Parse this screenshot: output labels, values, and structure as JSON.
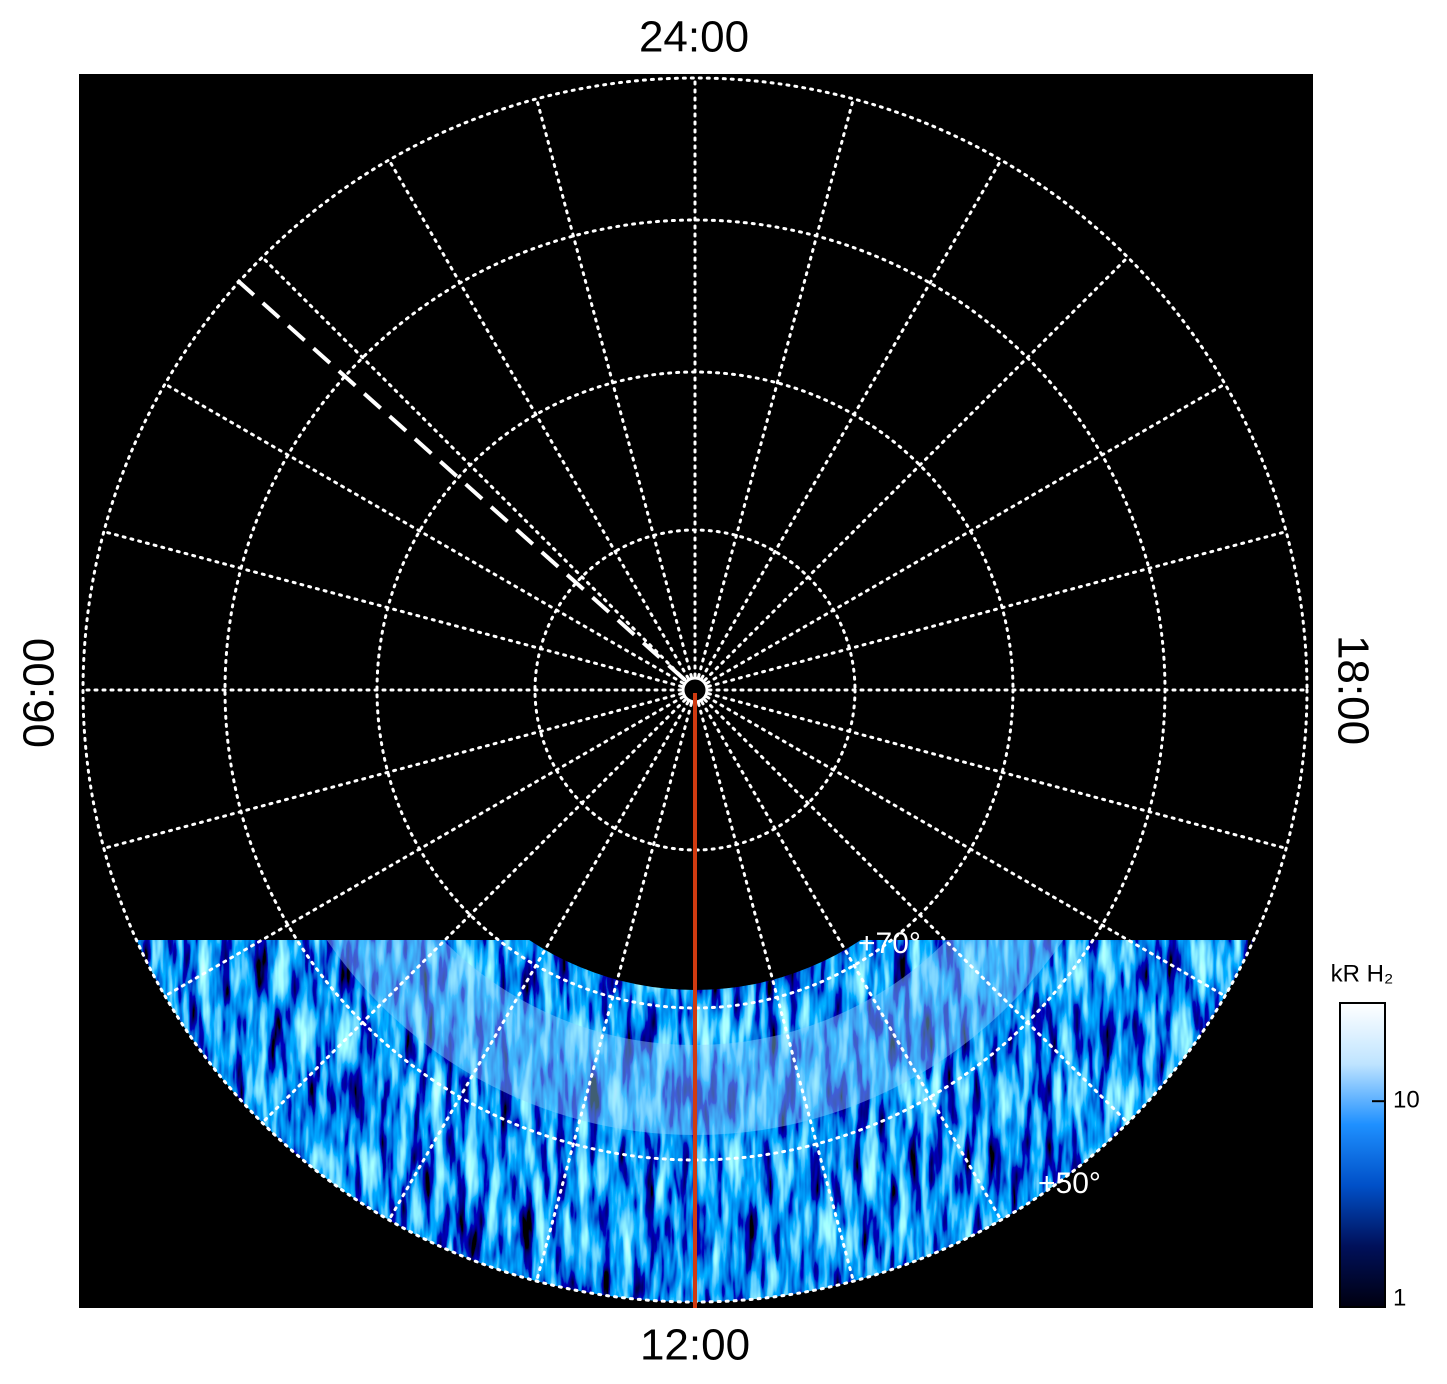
{
  "local_time_labels": {
    "top": "24:00",
    "left": "06:00",
    "right": "18:00",
    "bottom": "12:00"
  },
  "latitude_labels": [
    "+70°",
    "+50°"
  ],
  "colorbar": {
    "title": "kR H₂",
    "lim": [
      1,
      30
    ],
    "ticks": [
      1,
      10
    ],
    "log": true,
    "colors": [
      "#000010",
      "#00105a",
      "#0050c8",
      "#1e90ff",
      "#bfe4ff",
      "#ffffff"
    ]
  }
}
